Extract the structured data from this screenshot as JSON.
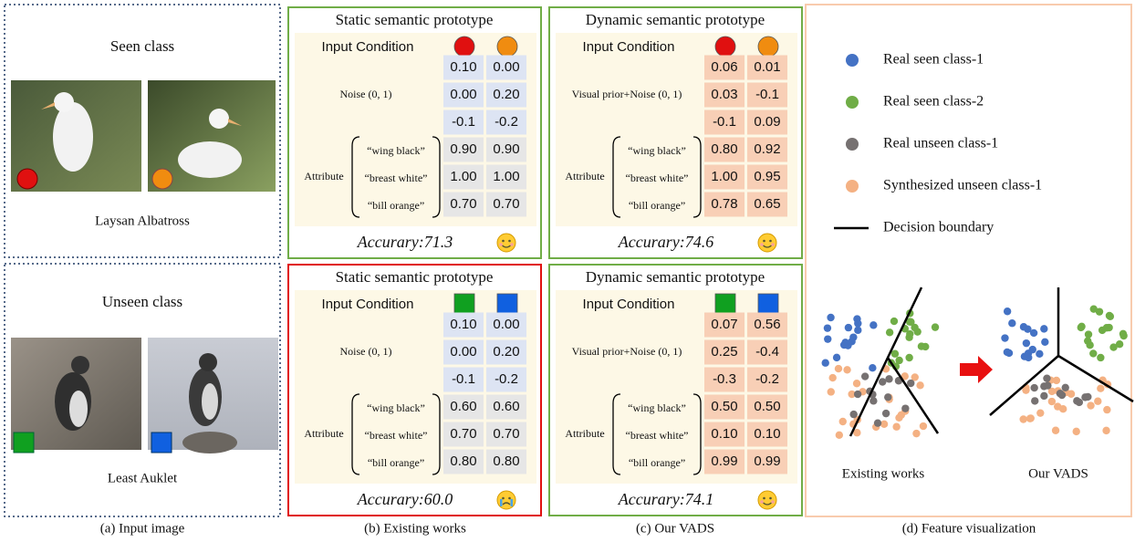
{
  "panel_a": {
    "caption": "(a) Input image",
    "seen": {
      "title": "Seen class",
      "species": "Laysan Albatross"
    },
    "unseen": {
      "title": "Unseen class",
      "species": "Least Auklet"
    }
  },
  "tables": [
    {
      "title": "Static semantic prototype",
      "input_condition": "Input Condition",
      "noise_label": "Noise (0, 1)",
      "attribute_label": "Attribute",
      "attributes": [
        "“wing black”",
        "“breast white”",
        "“bill orange”"
      ],
      "rows": [
        [
          "0.10",
          "0.00"
        ],
        [
          "0.00",
          "0.20"
        ],
        [
          "-0.1",
          "-0.2"
        ],
        [
          "0.90",
          "0.90"
        ],
        [
          "1.00",
          "1.00"
        ],
        [
          "0.70",
          "0.70"
        ]
      ],
      "accuracy": "Accurary:71.3"
    },
    {
      "title": "Dynamic semantic prototype",
      "input_condition": "Input Condition",
      "noise_label": "Visual prior+Noise (0, 1)",
      "attribute_label": "Attribute",
      "attributes": [
        "“wing black”",
        "“breast white”",
        "“bill orange”"
      ],
      "rows": [
        [
          "0.06",
          "0.01"
        ],
        [
          "0.03",
          "-0.1"
        ],
        [
          "-0.1",
          "0.09"
        ],
        [
          "0.80",
          "0.92"
        ],
        [
          "1.00",
          "0.95"
        ],
        [
          "0.78",
          "0.65"
        ]
      ],
      "accuracy": "Accurary:74.6"
    },
    {
      "title": "Static semantic prototype",
      "input_condition": "Input Condition",
      "noise_label": "Noise (0, 1)",
      "attribute_label": "Attribute",
      "attributes": [
        "“wing black”",
        "“breast white”",
        "“bill orange”"
      ],
      "rows": [
        [
          "0.10",
          "0.00"
        ],
        [
          "0.00",
          "0.20"
        ],
        [
          "-0.1",
          "-0.2"
        ],
        [
          "0.60",
          "0.60"
        ],
        [
          "0.70",
          "0.70"
        ],
        [
          "0.80",
          "0.80"
        ]
      ],
      "accuracy": "Accurary:60.0"
    },
    {
      "title": "Dynamic semantic prototype",
      "input_condition": "Input Condition",
      "noise_label": "Visual prior+Noise (0, 1)",
      "attribute_label": "Attribute",
      "attributes": [
        "“wing black”",
        "“breast white”",
        "“bill orange”"
      ],
      "rows": [
        [
          "0.07",
          "0.56"
        ],
        [
          "0.25",
          "-0.4"
        ],
        [
          "-0.3",
          "-0.2"
        ],
        [
          "0.50",
          "0.50"
        ],
        [
          "0.10",
          "0.10"
        ],
        [
          "0.99",
          "0.99"
        ]
      ],
      "accuracy": "Accurary:74.1"
    }
  ],
  "captions": [
    "(b) Existing works",
    "(c) Our VADS",
    "(d) Feature visualization"
  ],
  "legend": [
    {
      "name": "Real seen class-1",
      "color": "#4472c4"
    },
    {
      "name": "Real seen class-2",
      "color": "#70ad47"
    },
    {
      "name": "Real unseen class-1",
      "color": "#767171"
    },
    {
      "name": "Synthesized unseen class-1",
      "color": "#f4b183"
    }
  ],
  "decision_boundary": "Decision boundary",
  "plot_labels": [
    "Existing works",
    "Our VADS"
  ]
}
